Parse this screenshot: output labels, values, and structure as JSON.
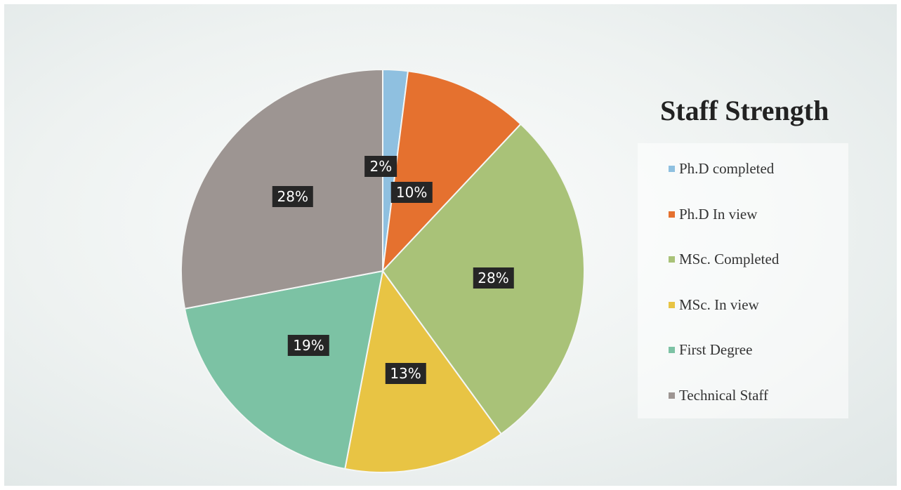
{
  "chart_data": {
    "type": "pie",
    "title": "Staff Strength",
    "categories": [
      "Ph.D completed",
      "Ph.D In view",
      "MSc. Completed",
      "MSc. In view",
      "First Degree",
      "Technical Staff"
    ],
    "values": [
      2,
      10,
      28,
      13,
      19,
      28
    ],
    "data_labels": [
      "2%",
      "10%",
      "28%",
      "13%",
      "19%",
      "28%"
    ],
    "colors": [
      "#8fc0e0",
      "#e5712f",
      "#a9c278",
      "#e8c444",
      "#7cc2a4",
      "#9d9592"
    ],
    "legend_position": "right",
    "start_angle_deg": 0,
    "direction": "clockwise"
  }
}
